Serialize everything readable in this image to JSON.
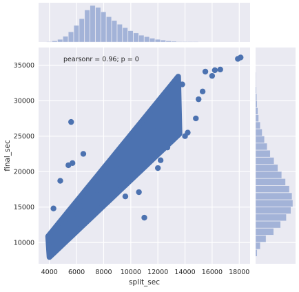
{
  "chart_data": {
    "type": "scatter",
    "title": "",
    "xlabel": "split_sec",
    "ylabel": "final_sec",
    "annotation": "pearsonr = 0.96; p = 0",
    "xlim": [
      3200,
      18800
    ],
    "ylim": [
      7000,
      37500
    ],
    "x_ticks": [
      4000,
      6000,
      8000,
      10000,
      12000,
      14000,
      16000,
      18000
    ],
    "y_ticks": [
      10000,
      15000,
      20000,
      25000,
      30000,
      35000
    ],
    "grid": true,
    "colors": {
      "background": "#eaeaf2",
      "grid": "#ffffff",
      "points": "#4c72b0",
      "histogram": "#a3b3d8"
    },
    "fit": {
      "slope": 2.08,
      "intercept": 1200
    },
    "scatter_points": [
      {
        "x": 4000,
        "y": 8900
      },
      {
        "x": 4200,
        "y": 9300
      },
      {
        "x": 4500,
        "y": 10100
      },
      {
        "x": 5000,
        "y": 11500
      },
      {
        "x": 5500,
        "y": 12800
      },
      {
        "x": 6000,
        "y": 14000
      },
      {
        "x": 6500,
        "y": 15200
      },
      {
        "x": 7000,
        "y": 16300
      },
      {
        "x": 7500,
        "y": 17400
      },
      {
        "x": 8000,
        "y": 18400
      },
      {
        "x": 8500,
        "y": 19400
      },
      {
        "x": 9000,
        "y": 20400
      },
      {
        "x": 9500,
        "y": 21300
      },
      {
        "x": 10000,
        "y": 22300
      },
      {
        "x": 10500,
        "y": 23200
      },
      {
        "x": 11000,
        "y": 24200
      },
      {
        "x": 11500,
        "y": 25300
      },
      {
        "x": 12000,
        "y": 26300
      },
      {
        "x": 12500,
        "y": 27300
      },
      {
        "x": 13000,
        "y": 28300
      },
      {
        "x": 13500,
        "y": 29500
      },
      {
        "x": 5600,
        "y": 27000
      },
      {
        "x": 4800,
        "y": 18700
      },
      {
        "x": 5700,
        "y": 21200
      },
      {
        "x": 4300,
        "y": 14800
      },
      {
        "x": 5400,
        "y": 20900
      },
      {
        "x": 6500,
        "y": 22500
      },
      {
        "x": 11000,
        "y": 13500
      },
      {
        "x": 9600,
        "y": 16500
      },
      {
        "x": 10600,
        "y": 17100
      },
      {
        "x": 12000,
        "y": 20500
      },
      {
        "x": 12200,
        "y": 21600
      },
      {
        "x": 14000,
        "y": 25000
      },
      {
        "x": 14800,
        "y": 27500
      },
      {
        "x": 13800,
        "y": 32300
      },
      {
        "x": 15300,
        "y": 31300
      },
      {
        "x": 15500,
        "y": 34100
      },
      {
        "x": 15000,
        "y": 30200
      },
      {
        "x": 16000,
        "y": 33500
      },
      {
        "x": 16600,
        "y": 34400
      },
      {
        "x": 16200,
        "y": 34300
      },
      {
        "x": 17900,
        "y": 35900
      },
      {
        "x": 18100,
        "y": 36100
      },
      {
        "x": 14200,
        "y": 25500
      },
      {
        "x": 12700,
        "y": 23400
      }
    ],
    "marginal_x_hist": {
      "bin_edges": [
        3800,
        4200,
        4600,
        5000,
        5400,
        5800,
        6200,
        6600,
        7000,
        7400,
        7800,
        8200,
        8600,
        9000,
        9400,
        9800,
        10200,
        10600,
        11000,
        11400,
        11800,
        12200,
        12600,
        13000,
        13400,
        13800,
        14200,
        14600,
        15000
      ],
      "counts": [
        1,
        3,
        7,
        15,
        27,
        44,
        62,
        85,
        97,
        92,
        80,
        67,
        57,
        47,
        38,
        30,
        24,
        18,
        14,
        10,
        7,
        5,
        3,
        2,
        1,
        1,
        1,
        1
      ]
    },
    "marginal_y_hist": {
      "bin_edges": [
        8000,
        9000,
        10000,
        11000,
        12000,
        13000,
        14000,
        15000,
        16000,
        17000,
        18000,
        19000,
        20000,
        21000,
        22000,
        23000,
        24000,
        25000,
        26000,
        27000,
        28000,
        29000,
        30000,
        31000,
        32000,
        33000,
        34000
      ],
      "counts": [
        4,
        12,
        27,
        47,
        65,
        80,
        92,
        97,
        95,
        88,
        78,
        68,
        58,
        48,
        38,
        30,
        23,
        17,
        12,
        8,
        6,
        4,
        3,
        2,
        1,
        1
      ]
    }
  }
}
